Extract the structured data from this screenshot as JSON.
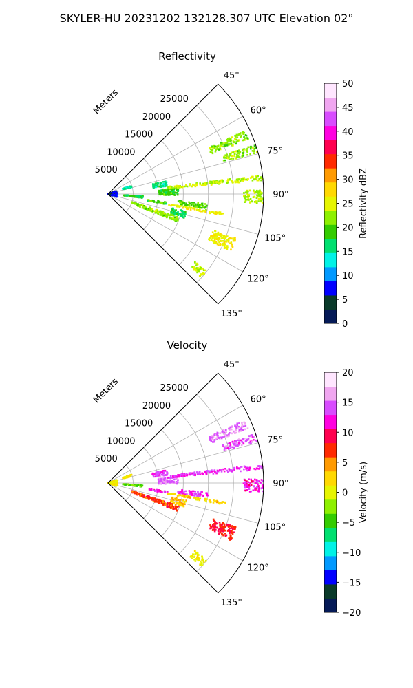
{
  "figure": {
    "suptitle": "SKYLER-HU  20231202  132128.307 UTC Elevation 02°"
  },
  "colors": {
    "grid": "#b0b0b0",
    "frame": "#000000",
    "background": "#ffffff"
  },
  "chart_data": [
    {
      "type": "heatmap",
      "subtype": "polar-sector",
      "title": "Reflectivity",
      "radial_axis": {
        "label": "Meters",
        "ticks": [
          "5000",
          "10000",
          "15000",
          "20000",
          "25000"
        ],
        "max": 31000
      },
      "angular_axis": {
        "ticks": [
          "45°",
          "60°",
          "75°",
          "90°",
          "105°",
          "120°",
          "135°"
        ],
        "range_deg": [
          45,
          135
        ],
        "zero_location": "N",
        "direction": "clockwise"
      },
      "grid": true,
      "colorbar": {
        "label": "Reflectivity dBZ",
        "ticks": [
          "0",
          "5",
          "10",
          "15",
          "20",
          "25",
          "30",
          "35",
          "40",
          "45",
          "50"
        ],
        "range": [
          0,
          50
        ],
        "stops": [
          "#051a57",
          "#0a3a2a",
          "#0000ff",
          "#0099ff",
          "#00f2e6",
          "#00e070",
          "#33cc00",
          "#8ef000",
          "#e6f500",
          "#ffd800",
          "#ff9a00",
          "#ff2a00",
          "#ff0050",
          "#ff00e0",
          "#d84cff",
          "#f0a6f0",
          "#ffe6ff"
        ]
      },
      "echo_cells": [
        {
          "az": 67,
          "r0": 22000,
          "r1": 30000,
          "w": 3.5,
          "value": 22
        },
        {
          "az": 73,
          "r0": 24000,
          "r1": 31000,
          "w": 3,
          "value": 22
        },
        {
          "az": 80,
          "r0": 9000,
          "r1": 12000,
          "w": 5,
          "value": 16
        },
        {
          "az": 88,
          "r0": 10000,
          "r1": 14000,
          "w": 6,
          "value": 19
        },
        {
          "az": 84,
          "r0": 12000,
          "r1": 31000,
          "w": 2,
          "value": 24
        },
        {
          "az": 91,
          "r0": 27000,
          "r1": 31000,
          "w": 5,
          "value": 23
        },
        {
          "az": 97,
          "r0": 14000,
          "r1": 20000,
          "w": 3,
          "value": 20
        },
        {
          "az": 99,
          "r0": 8000,
          "r1": 12000,
          "w": 2,
          "value": 19
        },
        {
          "az": 105,
          "r0": 13000,
          "r1": 16000,
          "w": 5,
          "value": 17
        },
        {
          "az": 110,
          "r0": 5000,
          "r1": 15000,
          "w": 4,
          "value": 22
        },
        {
          "az": 112,
          "r0": 22000,
          "r1": 27000,
          "w": 6,
          "value": 26
        },
        {
          "az": 130,
          "r0": 22000,
          "r1": 25000,
          "w": 4,
          "value": 24
        },
        {
          "az": 100,
          "r0": 12000,
          "r1": 24000,
          "w": 1.5,
          "value": 25
        },
        {
          "az": 90,
          "r0": 0,
          "r1": 1800,
          "w": 40,
          "value": 7
        },
        {
          "az": 72,
          "r0": 3000,
          "r1": 5000,
          "w": 4,
          "value": 15
        },
        {
          "az": 95,
          "r0": 3000,
          "r1": 7000,
          "w": 3,
          "value": 18
        }
      ]
    },
    {
      "type": "heatmap",
      "subtype": "polar-sector",
      "title": "Velocity",
      "radial_axis": {
        "label": "Meters",
        "ticks": [
          "5000",
          "10000",
          "15000",
          "20000",
          "25000"
        ],
        "max": 31000
      },
      "angular_axis": {
        "ticks": [
          "45°",
          "60°",
          "75°",
          "90°",
          "105°",
          "120°",
          "135°"
        ],
        "range_deg": [
          45,
          135
        ],
        "zero_location": "N",
        "direction": "clockwise"
      },
      "grid": true,
      "colorbar": {
        "label": "Velocity (m/s)",
        "ticks": [
          "−20",
          "−15",
          "−10",
          "−5",
          "0",
          "5",
          "10",
          "15",
          "20"
        ],
        "range": [
          -20,
          20
        ],
        "stops": [
          "#051a57",
          "#0a3a2a",
          "#0000ff",
          "#0099ff",
          "#00f2e6",
          "#00e070",
          "#33cc00",
          "#8ef000",
          "#e6f500",
          "#ffd800",
          "#ff9a00",
          "#ff2a00",
          "#ff0050",
          "#ff00e0",
          "#d84cff",
          "#f0a6f0",
          "#ffe6ff"
        ]
      },
      "echo_cells": [
        {
          "az": 67,
          "r0": 22000,
          "r1": 30000,
          "w": 3.5,
          "value": 15
        },
        {
          "az": 73,
          "r0": 24000,
          "r1": 31000,
          "w": 3,
          "value": 14
        },
        {
          "az": 80,
          "r0": 9000,
          "r1": 12000,
          "w": 5,
          "value": 14
        },
        {
          "az": 88,
          "r0": 10000,
          "r1": 14000,
          "w": 6,
          "value": 15
        },
        {
          "az": 84,
          "r0": 12000,
          "r1": 31000,
          "w": 2,
          "value": 13
        },
        {
          "az": 91,
          "r0": 27000,
          "r1": 31000,
          "w": 5,
          "value": 12
        },
        {
          "az": 97,
          "r0": 14000,
          "r1": 20000,
          "w": 3,
          "value": 13
        },
        {
          "az": 99,
          "r0": 8000,
          "r1": 12000,
          "w": 2,
          "value": 12
        },
        {
          "az": 105,
          "r0": 13000,
          "r1": 16000,
          "w": 5,
          "value": 3
        },
        {
          "az": 110,
          "r0": 5000,
          "r1": 15000,
          "w": 4,
          "value": 7
        },
        {
          "az": 112,
          "r0": 22000,
          "r1": 27000,
          "w": 6,
          "value": 8
        },
        {
          "az": 130,
          "r0": 22000,
          "r1": 25000,
          "w": 4,
          "value": 1
        },
        {
          "az": 100,
          "r0": 12000,
          "r1": 24000,
          "w": 1.5,
          "value": 2
        },
        {
          "az": 90,
          "r0": 0,
          "r1": 1800,
          "w": 40,
          "value": 1
        },
        {
          "az": 72,
          "r0": 3000,
          "r1": 5000,
          "w": 4,
          "value": 1
        },
        {
          "az": 95,
          "r0": 3000,
          "r1": 7000,
          "w": 3,
          "value": -4
        }
      ]
    }
  ]
}
